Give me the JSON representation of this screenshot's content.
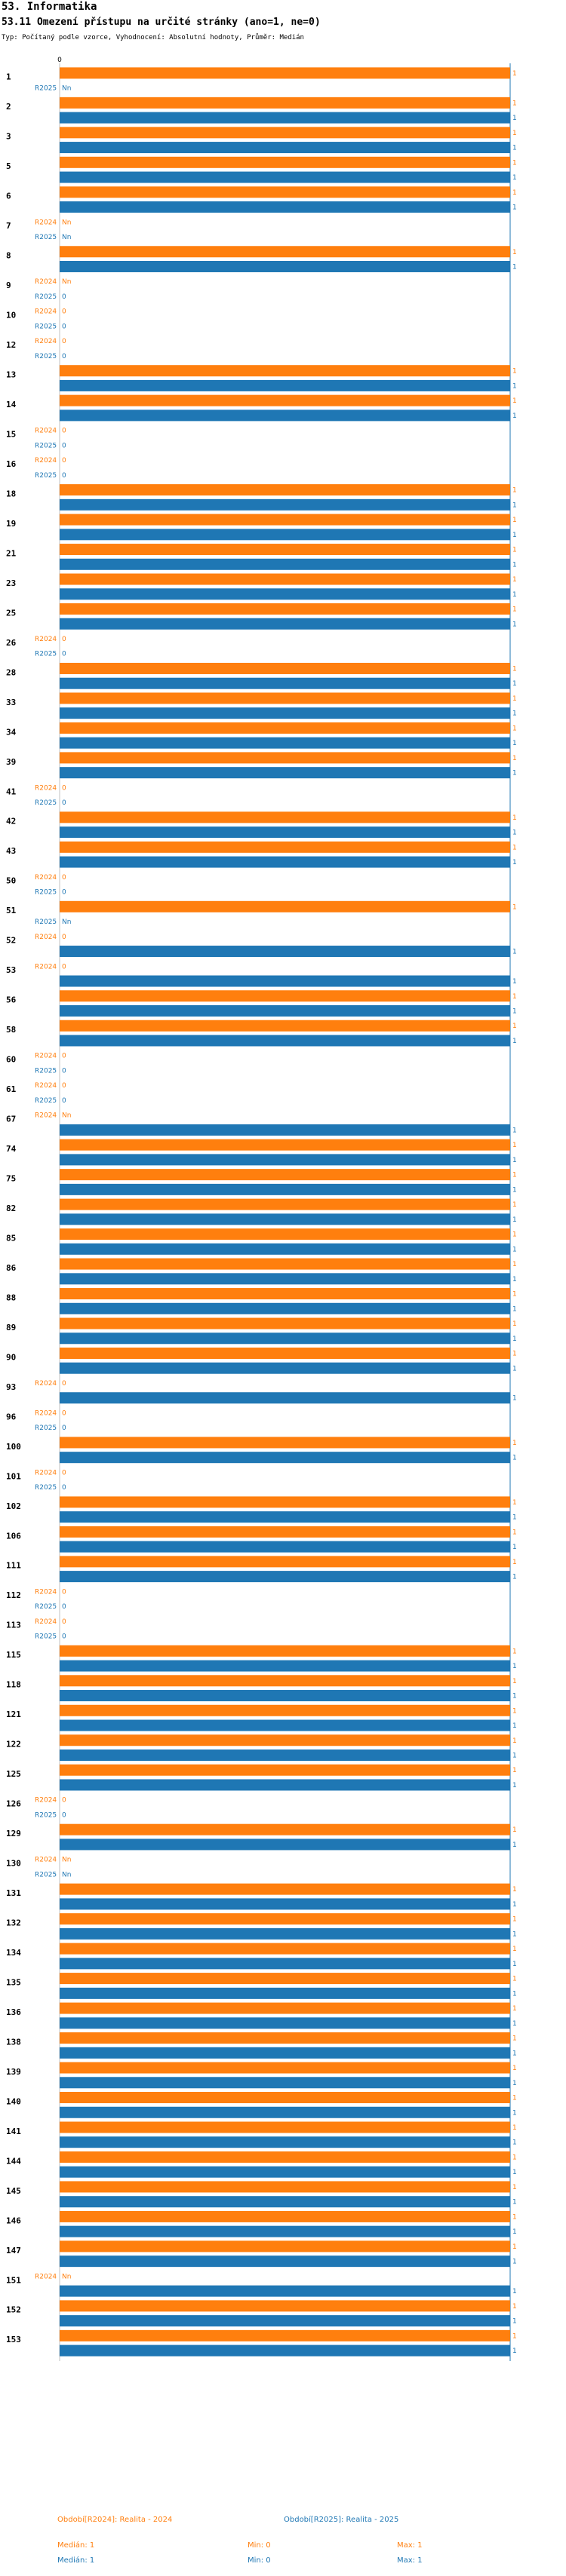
{
  "header": {
    "section": "53. Informatika",
    "question": "53.11 Omezení přístupu na určité stránky (ano=1, ne=0)",
    "meta": "Typ: Počítaný podle vzorce, Vyhodnocení: Absolutní hodnoty, Průměr: Medián"
  },
  "colors": {
    "r2024": "#ff7f0e",
    "r2025": "#1f77b4",
    "axis": "#1f77b4"
  },
  "chart_data": {
    "type": "bar",
    "orientation": "horizontal",
    "title": "53.11 Omezení přístupu na určité stránky (ano=1, ne=0)",
    "xlim": [
      0,
      1
    ],
    "ticks": [
      "0"
    ],
    "series": [
      {
        "name": "R2024",
        "color": "#ff7f0e"
      },
      {
        "name": "R2025",
        "color": "#1f77b4"
      }
    ],
    "groups": [
      {
        "label": "1",
        "r2024": 1,
        "r2025": null
      },
      {
        "label": "2",
        "r2024": 1,
        "r2025": 1
      },
      {
        "label": "3",
        "r2024": 1,
        "r2025": 1
      },
      {
        "label": "5",
        "r2024": 1,
        "r2025": 1
      },
      {
        "label": "6",
        "r2024": 1,
        "r2025": 1
      },
      {
        "label": "7",
        "r2024": null,
        "r2025": null
      },
      {
        "label": "8",
        "r2024": 1,
        "r2025": 1
      },
      {
        "label": "9",
        "r2024": null,
        "r2025": 0
      },
      {
        "label": "10",
        "r2024": 0,
        "r2025": 0
      },
      {
        "label": "12",
        "r2024": 0,
        "r2025": 0
      },
      {
        "label": "13",
        "r2024": 1,
        "r2025": 1
      },
      {
        "label": "14",
        "r2024": 1,
        "r2025": 1
      },
      {
        "label": "15",
        "r2024": 0,
        "r2025": 0
      },
      {
        "label": "16",
        "r2024": 0,
        "r2025": 0
      },
      {
        "label": "18",
        "r2024": 1,
        "r2025": 1
      },
      {
        "label": "19",
        "r2024": 1,
        "r2025": 1
      },
      {
        "label": "21",
        "r2024": 1,
        "r2025": 1
      },
      {
        "label": "23",
        "r2024": 1,
        "r2025": 1
      },
      {
        "label": "25",
        "r2024": 1,
        "r2025": 1
      },
      {
        "label": "26",
        "r2024": 0,
        "r2025": 0
      },
      {
        "label": "28",
        "r2024": 1,
        "r2025": 1
      },
      {
        "label": "33",
        "r2024": 1,
        "r2025": 1
      },
      {
        "label": "34",
        "r2024": 1,
        "r2025": 1
      },
      {
        "label": "39",
        "r2024": 1,
        "r2025": 1
      },
      {
        "label": "41",
        "r2024": 0,
        "r2025": 0
      },
      {
        "label": "42",
        "r2024": 1,
        "r2025": 1
      },
      {
        "label": "43",
        "r2024": 1,
        "r2025": 1
      },
      {
        "label": "50",
        "r2024": 0,
        "r2025": 0
      },
      {
        "label": "51",
        "r2024": 1,
        "r2025": null
      },
      {
        "label": "52",
        "r2024": 0,
        "r2025": 1
      },
      {
        "label": "53",
        "r2024": 0,
        "r2025": 1
      },
      {
        "label": "56",
        "r2024": 1,
        "r2025": 1
      },
      {
        "label": "58",
        "r2024": 1,
        "r2025": 1
      },
      {
        "label": "60",
        "r2024": 0,
        "r2025": 0
      },
      {
        "label": "61",
        "r2024": 0,
        "r2025": 0
      },
      {
        "label": "67",
        "r2024": null,
        "r2025": 1
      },
      {
        "label": "74",
        "r2024": 1,
        "r2025": 1
      },
      {
        "label": "75",
        "r2024": 1,
        "r2025": 1
      },
      {
        "label": "82",
        "r2024": 1,
        "r2025": 1
      },
      {
        "label": "85",
        "r2024": 1,
        "r2025": 1
      },
      {
        "label": "86",
        "r2024": 1,
        "r2025": 1
      },
      {
        "label": "88",
        "r2024": 1,
        "r2025": 1
      },
      {
        "label": "89",
        "r2024": 1,
        "r2025": 1
      },
      {
        "label": "90",
        "r2024": 1,
        "r2025": 1
      },
      {
        "label": "93",
        "r2024": 0,
        "r2025": 1
      },
      {
        "label": "96",
        "r2024": 0,
        "r2025": 0
      },
      {
        "label": "100",
        "r2024": 1,
        "r2025": 1
      },
      {
        "label": "101",
        "r2024": 0,
        "r2025": 0
      },
      {
        "label": "102",
        "r2024": 1,
        "r2025": 1
      },
      {
        "label": "106",
        "r2024": 1,
        "r2025": 1
      },
      {
        "label": "111",
        "r2024": 1,
        "r2025": 1
      },
      {
        "label": "112",
        "r2024": 0,
        "r2025": 0
      },
      {
        "label": "113",
        "r2024": 0,
        "r2025": 0
      },
      {
        "label": "115",
        "r2024": 1,
        "r2025": 1
      },
      {
        "label": "118",
        "r2024": 1,
        "r2025": 1
      },
      {
        "label": "121",
        "r2024": 1,
        "r2025": 1
      },
      {
        "label": "122",
        "r2024": 1,
        "r2025": 1
      },
      {
        "label": "125",
        "r2024": 1,
        "r2025": 1
      },
      {
        "label": "126",
        "r2024": 0,
        "r2025": 0
      },
      {
        "label": "129",
        "r2024": 1,
        "r2025": 1
      },
      {
        "label": "130",
        "r2024": null,
        "r2025": null
      },
      {
        "label": "131",
        "r2024": 1,
        "r2025": 1
      },
      {
        "label": "132",
        "r2024": 1,
        "r2025": 1
      },
      {
        "label": "134",
        "r2024": 1,
        "r2025": 1
      },
      {
        "label": "135",
        "r2024": 1,
        "r2025": 1
      },
      {
        "label": "136",
        "r2024": 1,
        "r2025": 1
      },
      {
        "label": "138",
        "r2024": 1,
        "r2025": 1
      },
      {
        "label": "139",
        "r2024": 1,
        "r2025": 1
      },
      {
        "label": "140",
        "r2024": 1,
        "r2025": 1
      },
      {
        "label": "141",
        "r2024": 1,
        "r2025": 1
      },
      {
        "label": "144",
        "r2024": 1,
        "r2025": 1
      },
      {
        "label": "145",
        "r2024": 1,
        "r2025": 1
      },
      {
        "label": "146",
        "r2024": 1,
        "r2025": 1
      },
      {
        "label": "147",
        "r2024": 1,
        "r2025": 1
      },
      {
        "label": "151",
        "r2024": null,
        "r2025": 1
      },
      {
        "label": "152",
        "r2024": 1,
        "r2025": 1
      },
      {
        "label": "153",
        "r2024": 1,
        "r2025": 1
      }
    ],
    "na_label": "Nn"
  },
  "legend": {
    "r2024": {
      "title": "Období[R2024]: Realita - 2024",
      "median": "Medián: 1",
      "min": "Min: 0",
      "max": "Max: 1"
    },
    "r2025": {
      "title": "Období[R2025]: Realita - 2025",
      "median": "Medián: 1",
      "min": "Min: 0",
      "max": "Max: 1"
    }
  }
}
